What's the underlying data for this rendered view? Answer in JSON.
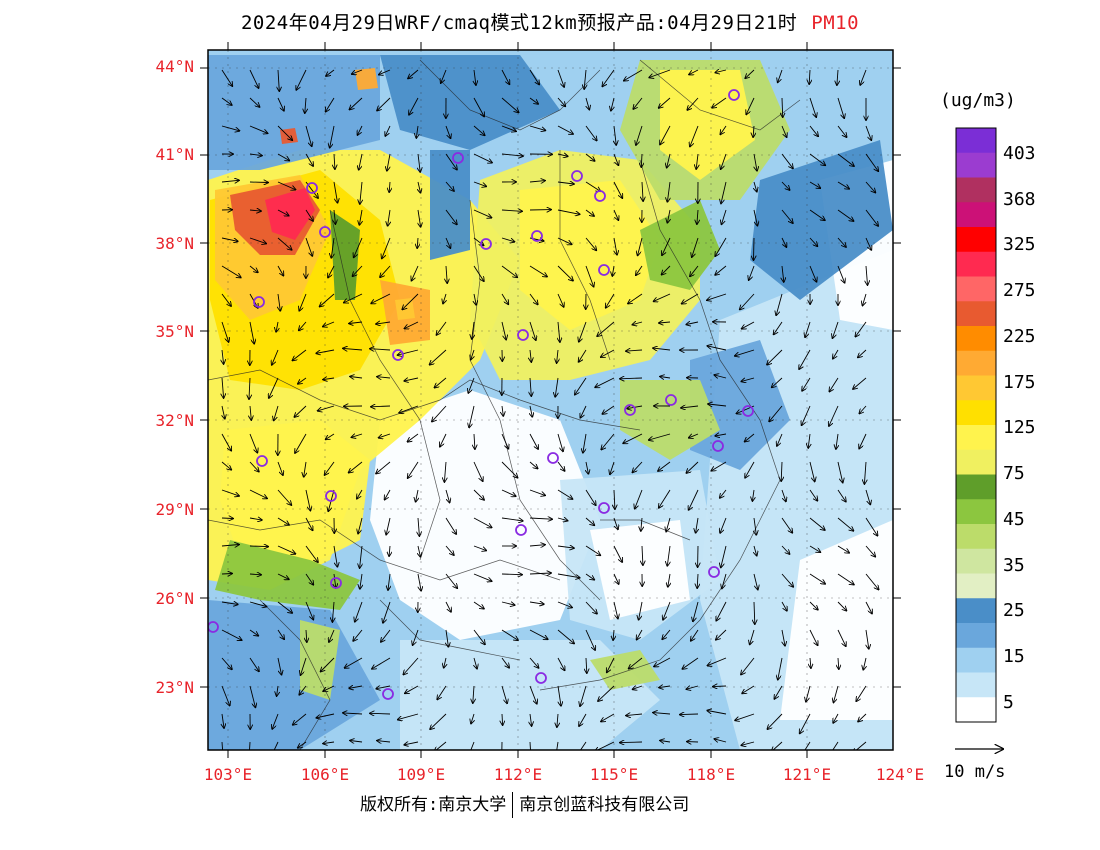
{
  "title": {
    "main": "2024年04月29日WRF/cmaq模式12km预报产品:04月29日21时",
    "pollutant": "PM10"
  },
  "colors": {
    "axis_label": "#e8232a",
    "station_marker": "#8a2be2"
  },
  "axes": {
    "lat_ticks": [
      "44°N",
      "41°N",
      "38°N",
      "35°N",
      "32°N",
      "29°N",
      "26°N",
      "23°N"
    ],
    "lon_ticks": [
      "103°E",
      "106°E",
      "109°E",
      "112°E",
      "115°E",
      "118°E",
      "121°E",
      "124°E"
    ]
  },
  "legend": {
    "units": "(ug/m3)",
    "labels": [
      "403",
      "368",
      "325",
      "275",
      "225",
      "175",
      "125",
      "75",
      "45",
      "35",
      "25",
      "15",
      "5"
    ],
    "colors": [
      "#7b2ed6",
      "#9b3cd0",
      "#b03060",
      "#cc1177",
      "#ff0000",
      "#ff2a50",
      "#ff6666",
      "#e85a30",
      "#ff8c00",
      "#ffaa33",
      "#ffc833",
      "#ffe000",
      "#fff34d",
      "#f0f060",
      "#5f9e2a",
      "#8cc63f",
      "#bcdc6a",
      "#cfe6a0",
      "#e2efc4",
      "#4a8ec8",
      "#6aa7dc",
      "#9fd0f0",
      "#c7e6f7",
      "#ffffff"
    ]
  },
  "vector_reference": "10 m/s",
  "copyright": {
    "left": "版权所有:南京大学",
    "right": "南京创蓝科技有限公司"
  }
}
